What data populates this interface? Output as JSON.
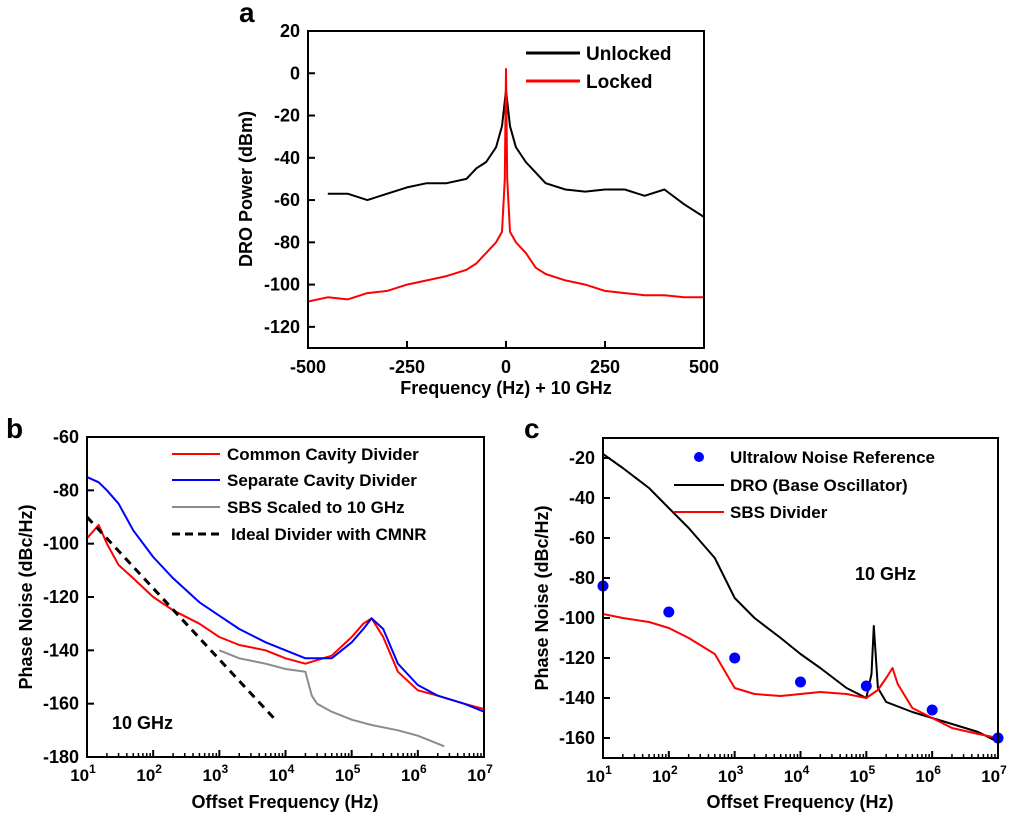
{
  "chart_data": [
    {
      "panel_label": "a",
      "type": "line",
      "xlabel": "Frequency (Hz) + 10 GHz",
      "ylabel": "DRO Power (dBm)",
      "xlim": [
        -500,
        500
      ],
      "ylim": [
        -130,
        20
      ],
      "x_ticks": [
        "-500",
        "-250",
        "0",
        "250",
        "500"
      ],
      "y_ticks": [
        "20",
        "0",
        "-20",
        "-40",
        "-60",
        "-80",
        "-100",
        "-120"
      ],
      "legend_position": "top-right",
      "series": [
        {
          "name": "Unlocked",
          "color": "#000000",
          "x": [
            -450,
            -400,
            -350,
            -300,
            -250,
            -200,
            -150,
            -100,
            -75,
            -50,
            -25,
            -10,
            0,
            10,
            25,
            50,
            75,
            100,
            150,
            200,
            250,
            300,
            350,
            400,
            450,
            500
          ],
          "y": [
            -57,
            -57,
            -60,
            -57,
            -54,
            -52,
            -52,
            -50,
            -45,
            -42,
            -35,
            -25,
            -8,
            -25,
            -35,
            -42,
            -47,
            -52,
            -55,
            -56,
            -55,
            -55,
            -58,
            -55,
            -62,
            -68
          ]
        },
        {
          "name": "Locked",
          "color": "#ff0000",
          "x": [
            -500,
            -450,
            -400,
            -350,
            -300,
            -250,
            -200,
            -150,
            -100,
            -75,
            -50,
            -25,
            -10,
            -3,
            0,
            3,
            10,
            25,
            50,
            75,
            100,
            150,
            200,
            250,
            300,
            350,
            400,
            450,
            500
          ],
          "y": [
            -108,
            -106,
            -107,
            -104,
            -103,
            -100,
            -98,
            -96,
            -93,
            -90,
            -85,
            -80,
            -75,
            -50,
            2,
            -50,
            -75,
            -80,
            -85,
            -92,
            -95,
            -98,
            -100,
            -103,
            -104,
            -105,
            -105,
            -106,
            -106
          ]
        }
      ]
    },
    {
      "panel_label": "b",
      "type": "line",
      "xlabel": "Offset Frequency (Hz)",
      "ylabel": "Phase Noise (dBc/Hz)",
      "x_scale": "log",
      "xlim": [
        10,
        10000000
      ],
      "ylim": [
        -180,
        -60
      ],
      "x_tick_base": "10",
      "x_tick_exponents": [
        "1",
        "2",
        "3",
        "4",
        "5",
        "6",
        "7"
      ],
      "y_ticks": [
        "-60",
        "-80",
        "-100",
        "-120",
        "-140",
        "-160",
        "-180"
      ],
      "annotation": "10 GHz",
      "legend_position": "top-right",
      "series": [
        {
          "name": "Common Cavity Divider",
          "color": "#ff0000",
          "x": [
            10,
            15,
            20,
            30,
            50,
            100,
            200,
            500,
            1000,
            2000,
            5000,
            10000,
            20000,
            50000,
            100000,
            150000,
            200000,
            300000,
            500000,
            1000000,
            2000000,
            5000000,
            10000000
          ],
          "y": [
            -98,
            -93,
            -100,
            -108,
            -113,
            -120,
            -125,
            -130,
            -135,
            -138,
            -140,
            -143,
            -145,
            -142,
            -135,
            -130,
            -128,
            -135,
            -148,
            -155,
            -157,
            -160,
            -162
          ]
        },
        {
          "name": "Separate Cavity Divider",
          "color": "#0000ff",
          "x": [
            10,
            15,
            20,
            30,
            50,
            100,
            200,
            500,
            1000,
            2000,
            5000,
            10000,
            20000,
            50000,
            100000,
            150000,
            200000,
            300000,
            500000,
            1000000,
            2000000,
            5000000,
            10000000
          ],
          "y": [
            -75,
            -77,
            -80,
            -85,
            -95,
            -105,
            -113,
            -122,
            -127,
            -132,
            -137,
            -140,
            -143,
            -143,
            -137,
            -132,
            -128,
            -132,
            -145,
            -153,
            -157,
            -160,
            -163
          ]
        },
        {
          "name": "SBS Scaled to 10 GHz",
          "color": "#8c8c8c",
          "x": [
            1000,
            2000,
            5000,
            10000,
            20000,
            25000,
            30000,
            50000,
            100000,
            200000,
            500000,
            1000000,
            2000000,
            2500000
          ],
          "y": [
            -140,
            -143,
            -145,
            -147,
            -148,
            -157,
            -160,
            -163,
            -166,
            -168,
            -170,
            -172,
            -175,
            -176
          ]
        },
        {
          "name": "Ideal Divider with CMNR",
          "color": "#000000",
          "dashed": true,
          "x": [
            10,
            7000
          ],
          "y": [
            -90,
            -166
          ]
        }
      ]
    },
    {
      "panel_label": "c",
      "type": "line",
      "xlabel": "Offset Frequency (Hz)",
      "ylabel": "Phase Noise (dBc/Hz)",
      "x_scale": "log",
      "xlim": [
        10,
        10000000
      ],
      "ylim": [
        -170,
        -10
      ],
      "x_tick_base": "10",
      "x_tick_exponents": [
        "1",
        "2",
        "3",
        "4",
        "5",
        "6",
        "7"
      ],
      "y_ticks": [
        "-20",
        "-40",
        "-60",
        "-80",
        "-100",
        "-120",
        "-140",
        "-160"
      ],
      "annotation": "10 GHz",
      "legend_position": "top-right",
      "series": [
        {
          "name": "Ultralow Noise Reference",
          "color": "#0000ff",
          "type": "scatter",
          "x": [
            10,
            100,
            1000,
            10000,
            100000,
            1000000,
            10000000
          ],
          "y": [
            -84,
            -97,
            -120,
            -132,
            -134,
            -146,
            -160
          ]
        },
        {
          "name": "DRO (Base Oscillator)",
          "color": "#000000",
          "x": [
            10,
            20,
            50,
            100,
            200,
            500,
            1000,
            2000,
            5000,
            10000,
            20000,
            50000,
            100000,
            120000,
            130000,
            150000,
            200000,
            500000,
            1000000,
            2000000,
            5000000,
            10000000
          ],
          "y": [
            -18,
            -25,
            -35,
            -45,
            -55,
            -70,
            -90,
            -100,
            -110,
            -118,
            -125,
            -135,
            -140,
            -128,
            -104,
            -135,
            -142,
            -147,
            -150,
            -153,
            -157,
            -162
          ]
        },
        {
          "name": "SBS Divider",
          "color": "#ff0000",
          "x": [
            10,
            20,
            50,
            100,
            200,
            500,
            1000,
            2000,
            5000,
            10000,
            20000,
            50000,
            100000,
            150000,
            200000,
            250000,
            300000,
            500000,
            1000000,
            2000000,
            5000000,
            10000000
          ],
          "y": [
            -98,
            -100,
            -102,
            -105,
            -110,
            -118,
            -135,
            -138,
            -139,
            -138,
            -137,
            -138,
            -140,
            -136,
            -130,
            -125,
            -133,
            -145,
            -150,
            -155,
            -158,
            -160
          ]
        }
      ]
    }
  ]
}
